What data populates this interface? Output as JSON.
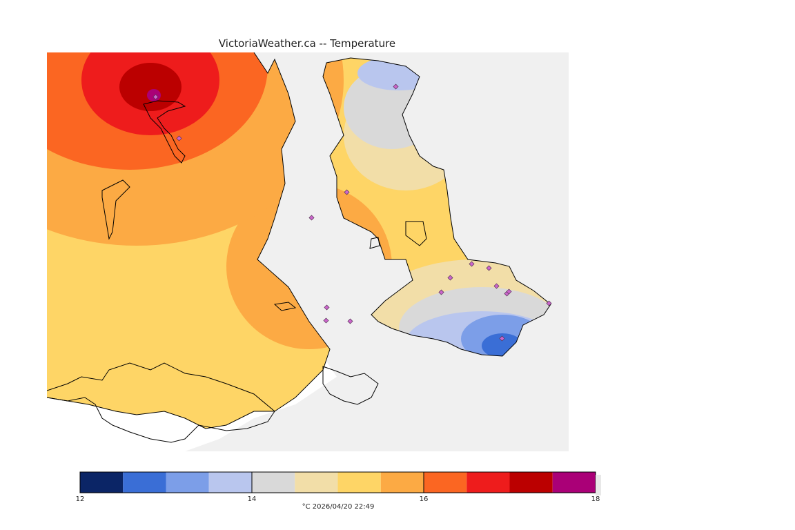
{
  "title": "VictoriaWeather.ca -- Temperature",
  "legend": {
    "unit": "°C",
    "timestamp": "2026/04/20 22:49",
    "caption": "°C  2026/04/20 22:49",
    "ticks": [
      "12",
      "14",
      "16",
      "18"
    ],
    "colors": [
      "#0b2566",
      "#3a6ed6",
      "#7c9ee8",
      "#b9c6ee",
      "#d9d9d9",
      "#f2dea8",
      "#fed566",
      "#fcaa44",
      "#fb6622",
      "#ee1c1c",
      "#bb0000",
      "#aa0077"
    ]
  },
  "map": {
    "colors": {
      "water": "#f0f0f0",
      "land_no_data": "#ffffff",
      "station_marker": "#cc66cc"
    },
    "station_count": 19
  }
}
